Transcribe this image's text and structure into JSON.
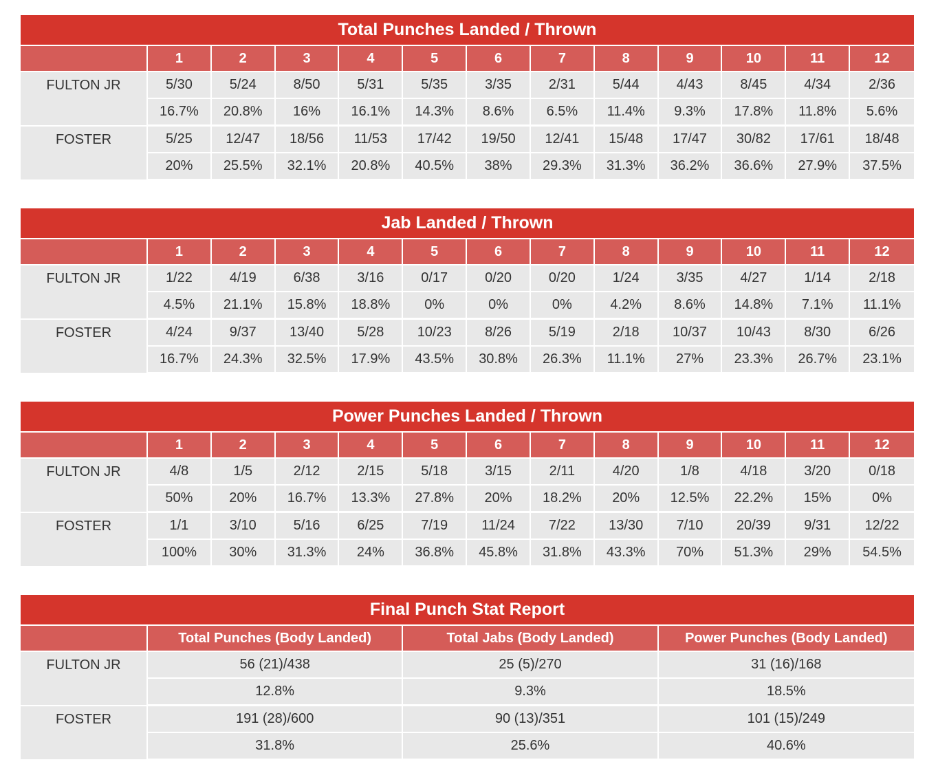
{
  "rounds": [
    "1",
    "2",
    "3",
    "4",
    "5",
    "6",
    "7",
    "8",
    "9",
    "10",
    "11",
    "12"
  ],
  "fighters": [
    "FULTON JR",
    "FOSTER"
  ],
  "colors": {
    "title_bg": "#d5352c",
    "header_bg": "#d55c58",
    "cell_bg": "#e8e8e8",
    "text": "#333333"
  },
  "tables": [
    {
      "title": "Total Punches Landed / Thrown",
      "rows": [
        {
          "fighter": "FULTON JR",
          "landed_thrown": [
            "5/30",
            "5/24",
            "8/50",
            "5/31",
            "5/35",
            "3/35",
            "2/31",
            "5/44",
            "4/43",
            "8/45",
            "4/34",
            "2/36"
          ],
          "pct": [
            "16.7%",
            "20.8%",
            "16%",
            "16.1%",
            "14.3%",
            "8.6%",
            "6.5%",
            "11.4%",
            "9.3%",
            "17.8%",
            "11.8%",
            "5.6%"
          ]
        },
        {
          "fighter": "FOSTER",
          "landed_thrown": [
            "5/25",
            "12/47",
            "18/56",
            "11/53",
            "17/42",
            "19/50",
            "12/41",
            "15/48",
            "17/47",
            "30/82",
            "17/61",
            "18/48"
          ],
          "pct": [
            "20%",
            "25.5%",
            "32.1%",
            "20.8%",
            "40.5%",
            "38%",
            "29.3%",
            "31.3%",
            "36.2%",
            "36.6%",
            "27.9%",
            "37.5%"
          ]
        }
      ]
    },
    {
      "title": "Jab Landed / Thrown",
      "rows": [
        {
          "fighter": "FULTON JR",
          "landed_thrown": [
            "1/22",
            "4/19",
            "6/38",
            "3/16",
            "0/17",
            "0/20",
            "0/20",
            "1/24",
            "3/35",
            "4/27",
            "1/14",
            "2/18"
          ],
          "pct": [
            "4.5%",
            "21.1%",
            "15.8%",
            "18.8%",
            "0%",
            "0%",
            "0%",
            "4.2%",
            "8.6%",
            "14.8%",
            "7.1%",
            "11.1%"
          ]
        },
        {
          "fighter": "FOSTER",
          "landed_thrown": [
            "4/24",
            "9/37",
            "13/40",
            "5/28",
            "10/23",
            "8/26",
            "5/19",
            "2/18",
            "10/37",
            "10/43",
            "8/30",
            "6/26"
          ],
          "pct": [
            "16.7%",
            "24.3%",
            "32.5%",
            "17.9%",
            "43.5%",
            "30.8%",
            "26.3%",
            "11.1%",
            "27%",
            "23.3%",
            "26.7%",
            "23.1%"
          ]
        }
      ]
    },
    {
      "title": "Power Punches Landed / Thrown",
      "rows": [
        {
          "fighter": "FULTON JR",
          "landed_thrown": [
            "4/8",
            "1/5",
            "2/12",
            "2/15",
            "5/18",
            "3/15",
            "2/11",
            "4/20",
            "1/8",
            "4/18",
            "3/20",
            "0/18"
          ],
          "pct": [
            "50%",
            "20%",
            "16.7%",
            "13.3%",
            "27.8%",
            "20%",
            "18.2%",
            "20%",
            "12.5%",
            "22.2%",
            "15%",
            "0%"
          ]
        },
        {
          "fighter": "FOSTER",
          "landed_thrown": [
            "1/1",
            "3/10",
            "5/16",
            "6/25",
            "7/19",
            "11/24",
            "7/22",
            "13/30",
            "7/10",
            "20/39",
            "9/31",
            "12/22"
          ],
          "pct": [
            "100%",
            "30%",
            "31.3%",
            "24%",
            "36.8%",
            "45.8%",
            "31.8%",
            "43.3%",
            "70%",
            "51.3%",
            "29%",
            "54.5%"
          ]
        }
      ]
    }
  ],
  "final": {
    "title": "Final Punch Stat Report",
    "columns": [
      "Total Punches (Body Landed)",
      "Total Jabs (Body Landed)",
      "Power Punches (Body Landed)"
    ],
    "rows": [
      {
        "fighter": "FULTON JR",
        "values": [
          "56 (21)/438",
          "25 (5)/270",
          "31 (16)/168"
        ],
        "pct": [
          "12.8%",
          "9.3%",
          "18.5%"
        ]
      },
      {
        "fighter": "FOSTER",
        "values": [
          "191 (28)/600",
          "90 (13)/351",
          "101 (15)/249"
        ],
        "pct": [
          "31.8%",
          "25.6%",
          "40.6%"
        ]
      }
    ]
  }
}
